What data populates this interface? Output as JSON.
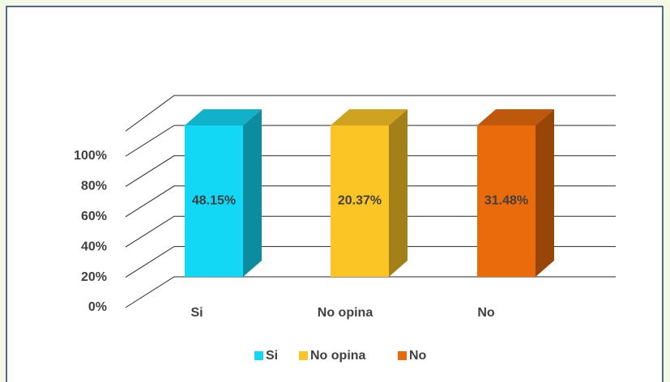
{
  "chart_data": {
    "type": "stacked100",
    "categories": [
      "Si",
      "No opina",
      "No"
    ],
    "series": [
      {
        "name": "Si",
        "color": "#13d8f5",
        "values": [
          48.15,
          null,
          null
        ],
        "value_labels": [
          "48.15%",
          null,
          null
        ]
      },
      {
        "name": "No opina",
        "color": "#fcc526",
        "values": [
          null,
          20.37,
          null
        ],
        "value_labels": [
          null,
          "20.37%",
          null
        ]
      },
      {
        "name": "No",
        "color": "#e96b0c",
        "values": [
          null,
          null,
          31.48
        ],
        "value_labels": [
          null,
          null,
          "31.48%"
        ]
      }
    ],
    "ylim": [
      0,
      100
    ],
    "yticks": [
      {
        "value": 0,
        "label": "0%"
      },
      {
        "value": 20,
        "label": "20%"
      },
      {
        "value": 40,
        "label": "40%"
      },
      {
        "value": 60,
        "label": "60%"
      },
      {
        "value": 80,
        "label": "80%"
      },
      {
        "value": 100,
        "label": "100%"
      }
    ],
    "grid": true,
    "legend": "bottom"
  }
}
